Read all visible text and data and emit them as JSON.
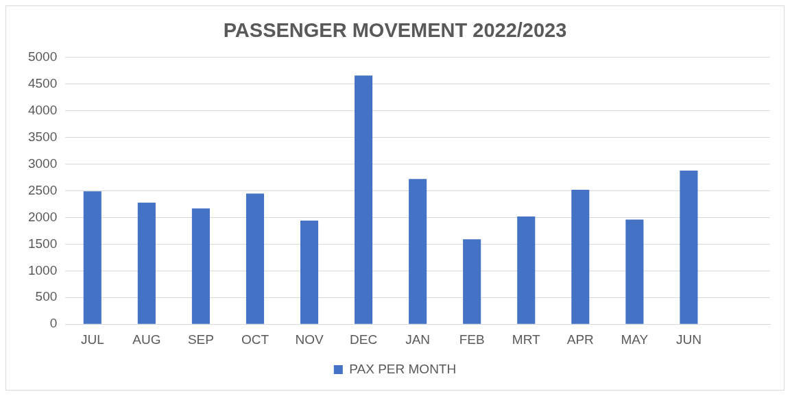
{
  "chart_data": {
    "type": "bar",
    "title": "PASSENGER MOVEMENT 2022/2023",
    "categories": [
      "JUL",
      "AUG",
      "SEP",
      "OCT",
      "NOV",
      "DEC",
      "JAN",
      "FEB",
      "MRT",
      "APR",
      "MAY",
      "JUN",
      null
    ],
    "series": [
      {
        "name": "PAX PER MONTH",
        "color": "#4472c4",
        "values": [
          2490,
          2280,
          2170,
          2450,
          1940,
          4660,
          2720,
          1590,
          2020,
          2520,
          1960,
          2880,
          null
        ]
      }
    ],
    "ylim": [
      0,
      5000
    ],
    "yticks": [
      0,
      500,
      1000,
      1500,
      2000,
      2500,
      3000,
      3500,
      4000,
      4500,
      5000
    ],
    "grid": "y",
    "legend": "bottom"
  }
}
